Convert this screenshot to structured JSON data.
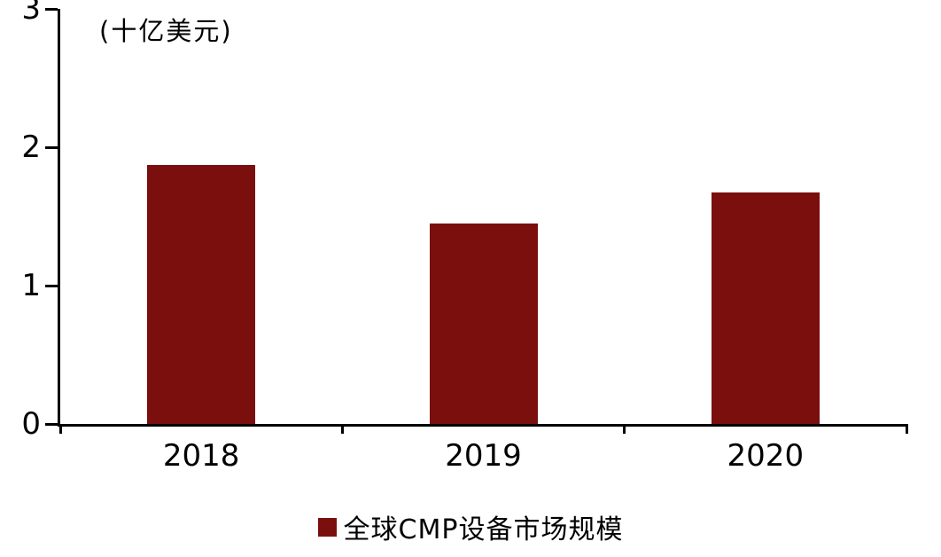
{
  "chart_data": {
    "type": "bar",
    "title": "",
    "unit_label": "(十亿美元)",
    "categories": [
      "2018",
      "2019",
      "2020"
    ],
    "series": [
      {
        "name": "全球CMP设备市场规模",
        "values": [
          1.87,
          1.45,
          1.67
        ]
      }
    ],
    "ylim": [
      0,
      3
    ],
    "yticks": [
      0,
      1,
      2,
      3
    ],
    "grid": false,
    "legend_position": "bottom",
    "bar_color": "#7a0f0e",
    "axis_color": "#000000"
  },
  "legend": {
    "label": "全球CMP设备市场规模"
  },
  "colors": {
    "bar": "#7a0f0e",
    "axis": "#000000",
    "text": "#000000",
    "background": "#ffffff"
  }
}
